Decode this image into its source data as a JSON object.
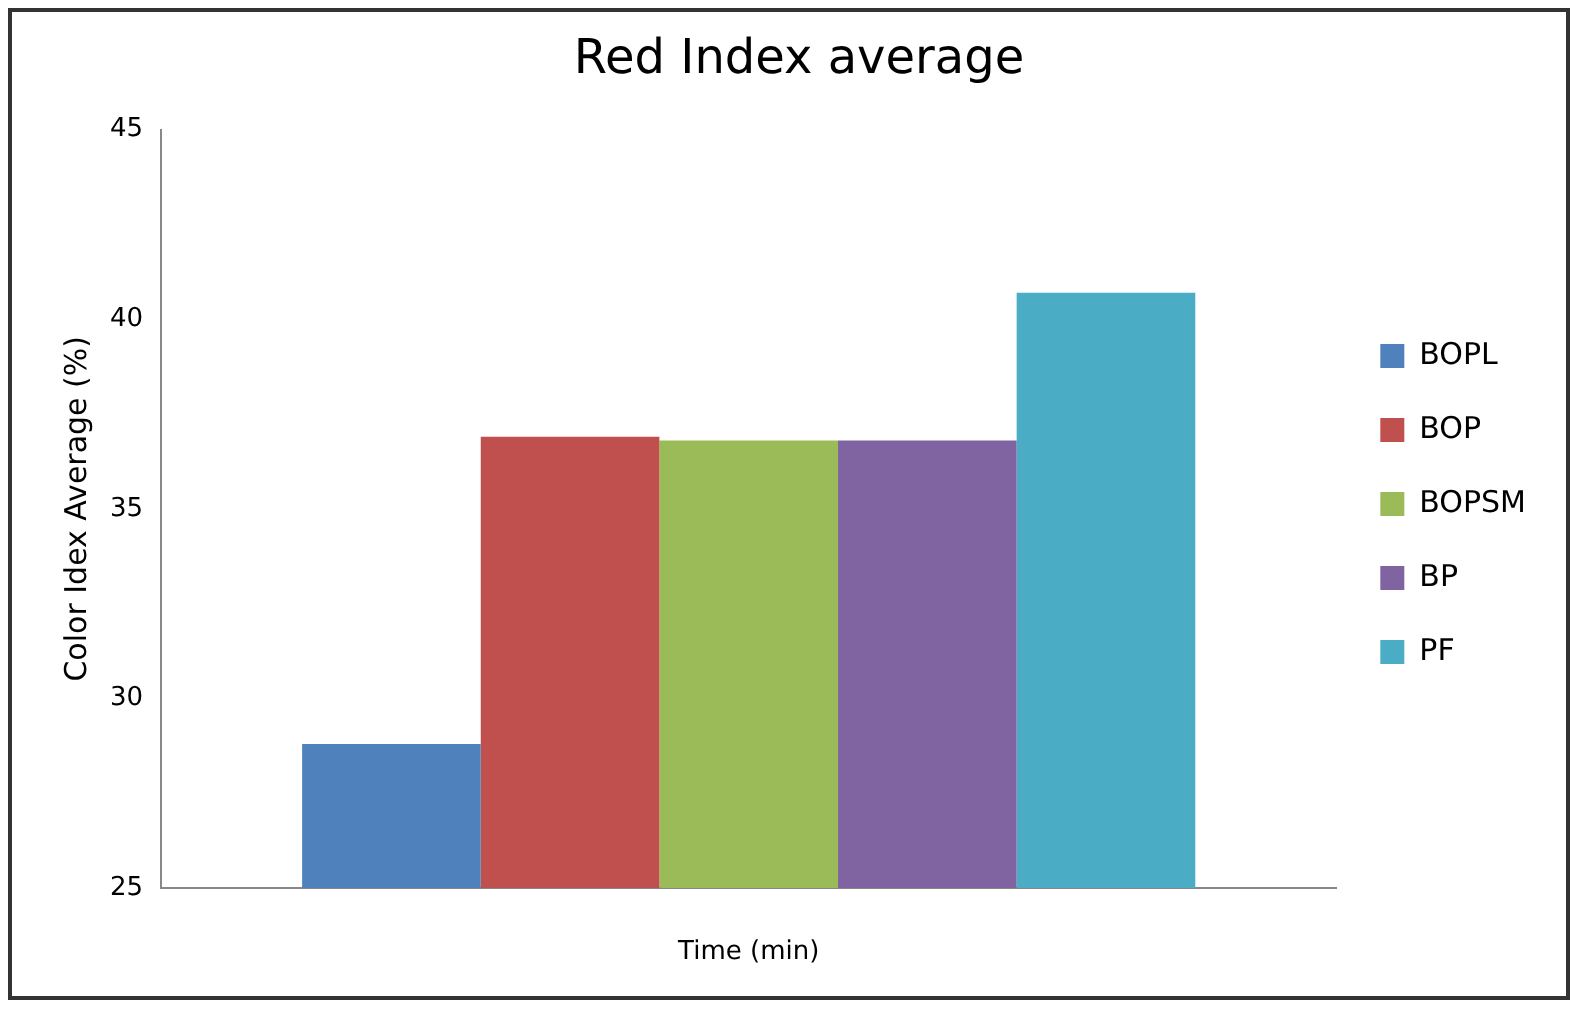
{
  "chart_data": {
    "type": "bar",
    "title": "Red Index average",
    "xlabel": "Time (min)",
    "ylabel": "Color Idex Average (%)",
    "categories": [
      null
    ],
    "series": [
      {
        "name": "BOPL",
        "color": "#4f81bd",
        "values": [
          28.8
        ]
      },
      {
        "name": "BOP",
        "color": "#c0504d",
        "values": [
          36.9
        ]
      },
      {
        "name": "BOPSM",
        "color": "#9bbb59",
        "values": [
          36.8
        ]
      },
      {
        "name": "BP",
        "color": "#8064a2",
        "values": [
          36.8
        ]
      },
      {
        "name": "PF",
        "color": "#4bacc6",
        "values": [
          40.7
        ]
      }
    ],
    "ylim": [
      25,
      45
    ],
    "yticks": [
      25,
      30,
      35,
      40,
      45
    ],
    "grid": false,
    "legend": "right"
  }
}
